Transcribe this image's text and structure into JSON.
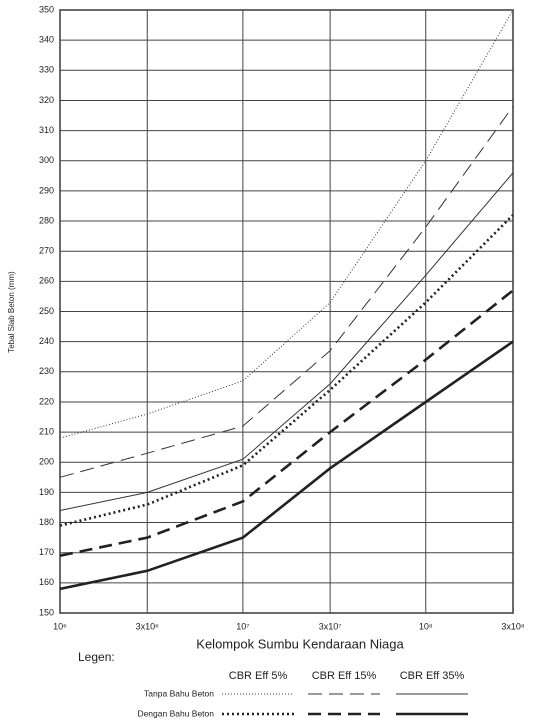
{
  "chart_data": {
    "type": "line",
    "x_label": "Kelompok Sumbu Kendaraan Niaga",
    "y_label": "Tebal Slab Beton (mm)",
    "x_scale": "log",
    "grid": true,
    "x": [
      1000000,
      3000000,
      10000000,
      30000000,
      100000000,
      300000000
    ],
    "xlim": [
      1000000,
      300000000
    ],
    "xticks": [
      {
        "value": 1000000,
        "label": "10⁶"
      },
      {
        "value": 3000000,
        "label": "3x10⁶"
      },
      {
        "value": 10000000,
        "label": "10⁷"
      },
      {
        "value": 30000000,
        "label": "3x10⁷"
      },
      {
        "value": 100000000,
        "label": "10⁸"
      },
      {
        "value": 300000000,
        "label": "3x10⁸"
      }
    ],
    "ylim": [
      150,
      350
    ],
    "yticks": [
      150,
      160,
      170,
      180,
      190,
      200,
      210,
      220,
      230,
      240,
      250,
      260,
      270,
      280,
      290,
      300,
      310,
      320,
      330,
      340,
      350
    ],
    "legend_title": "Legen:",
    "legend_columns": [
      "CBR Eff 5%",
      "CBR Eff 15%",
      "CBR Eff 35%"
    ],
    "series": [
      {
        "name": "Tanpa Bahu Beton",
        "width": 1,
        "color": "#333333",
        "lines": [
          {
            "dash": "1,2",
            "values": [
              208,
              216,
              227,
              253,
              300,
              350
            ]
          },
          {
            "dash": "14,7",
            "values": [
              195,
              203,
              212,
              237,
              278,
              318
            ]
          },
          {
            "dash": "none",
            "values": [
              184,
              190,
              201,
              226,
              262,
              296
            ]
          }
        ]
      },
      {
        "name": "Dengan Bahu Beton",
        "width": 2.6,
        "color": "#222222",
        "lines": [
          {
            "dash": "2,3",
            "values": [
              179,
              186,
              199,
              224,
              253,
              282
            ]
          },
          {
            "dash": "13,7",
            "values": [
              169,
              175,
              187,
              210,
              234,
              257
            ]
          },
          {
            "dash": "none",
            "values": [
              158,
              164,
              175,
              198,
              220,
              240
            ]
          }
        ]
      }
    ]
  }
}
